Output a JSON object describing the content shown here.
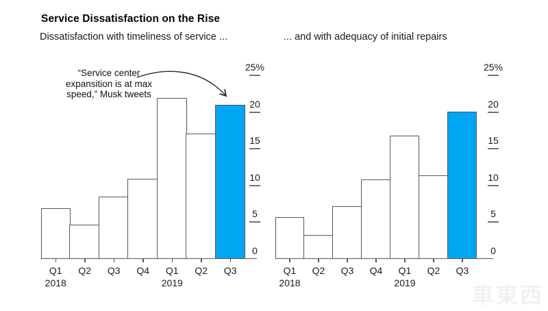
{
  "header": {
    "title": "Service Dissatisfaction on the Rise",
    "subtitle_left": "Dissatisfaction with timeliness of service ...",
    "subtitle_right": "... and with adequacy of initial repairs"
  },
  "annotation": {
    "lines": [
      "“Service center",
      "expansition is at max",
      "speed,” Musk tweets"
    ]
  },
  "watermark": "車東西",
  "colors": {
    "highlight": "#00a6f2",
    "bar_fill": "#ffffff",
    "bar_outline": "#54565c",
    "axis": "#54565c",
    "tick_dash": "#6e7176",
    "text": "#1a1a1a",
    "arrow": "#2a2a2a"
  },
  "chart_data": [
    {
      "type": "bar",
      "title": "Dissatisfaction with timeliness of service ...",
      "categories": [
        "Q1 2018",
        "Q2 2018",
        "Q3 2018",
        "Q4 2018",
        "Q1 2019",
        "Q2 2019",
        "Q3 2019"
      ],
      "x_tick_labels": [
        "Q1",
        "Q2",
        "Q3",
        "Q4",
        "Q1",
        "Q2",
        "Q3"
      ],
      "year_labels": {
        "0": "2018",
        "4": "2019"
      },
      "values": [
        6.9,
        4.7,
        8.5,
        10.9,
        21.9,
        17.1,
        21.0
      ],
      "highlight_index": 6,
      "highlight_label": "Q3 2019",
      "y_ticks": [
        0,
        5,
        10,
        15,
        20,
        25
      ],
      "y_tick_labels": [
        "0",
        "5",
        "10",
        "15",
        "20",
        "25%"
      ],
      "ylim": [
        0,
        25
      ],
      "unit": "%",
      "grid": false,
      "annotation": "“Service center expansition is at max speed,” Musk tweets"
    },
    {
      "type": "bar",
      "title": "... and with adequacy of initial repairs",
      "categories": [
        "Q1 2018",
        "Q2 2018",
        "Q3 2018",
        "Q4 2018",
        "Q1 2019",
        "Q2 2019",
        "Q3 2019"
      ],
      "x_tick_labels": [
        "Q1",
        "Q2",
        "Q3",
        "Q4",
        "Q1",
        "Q2",
        "Q3"
      ],
      "year_labels": {
        "0": "2018",
        "4": "2019"
      },
      "values": [
        5.7,
        3.3,
        7.2,
        10.8,
        16.8,
        11.4,
        20.1
      ],
      "highlight_index": 6,
      "highlight_label": "Q3 2019",
      "y_ticks": [
        0,
        5,
        10,
        15,
        20,
        25
      ],
      "y_tick_labels": [
        "0",
        "5",
        "10",
        "15",
        "20",
        "25%"
      ],
      "ylim": [
        0,
        25
      ],
      "unit": "%",
      "grid": false
    }
  ]
}
